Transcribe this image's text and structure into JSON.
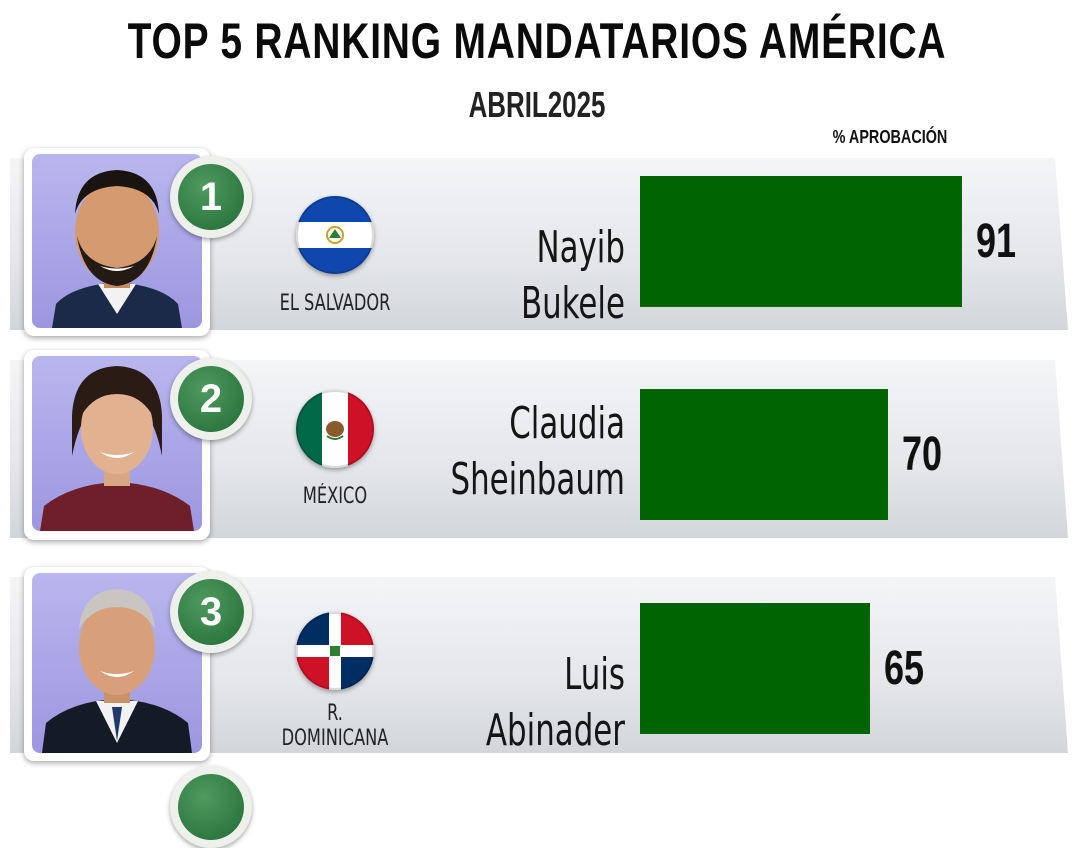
{
  "header": {
    "title": "TOP 5 RANKING MANDATARIOS AMÉRICA",
    "subtitle": "ABRIL2025",
    "column_label": "% APROBACIÓN"
  },
  "colors": {
    "bar": "#006400",
    "badge": "#2f7a42"
  },
  "chart_data": {
    "type": "bar",
    "orientation": "horizontal",
    "title": "TOP 5 RANKING MANDATARIOS AMÉRICA",
    "subtitle": "ABRIL2025",
    "value_label": "% APROBACIÓN",
    "categories": [
      "Nayib Bukele",
      "Claudia Sheinbaum",
      "Luis Abinader"
    ],
    "values": [
      91,
      70,
      65
    ],
    "xlim": [
      0,
      100
    ]
  },
  "rows": [
    {
      "rank": "1",
      "country": "EL SALVADOR",
      "name_lines": [
        "Nayib Bukele"
      ],
      "value": 91,
      "value_text": "91",
      "flag_icon": "el-salvador-flag-icon"
    },
    {
      "rank": "2",
      "country": "MÉXICO",
      "name_lines": [
        "Claudia",
        "Sheinbaum"
      ],
      "value": 70,
      "value_text": "70",
      "flag_icon": "mexico-flag-icon"
    },
    {
      "rank": "3",
      "country": "R. DOMINICANA",
      "name_lines": [
        "Luis Abinader"
      ],
      "value": 65,
      "value_text": "65",
      "flag_icon": "dominican-republic-flag-icon"
    }
  ]
}
